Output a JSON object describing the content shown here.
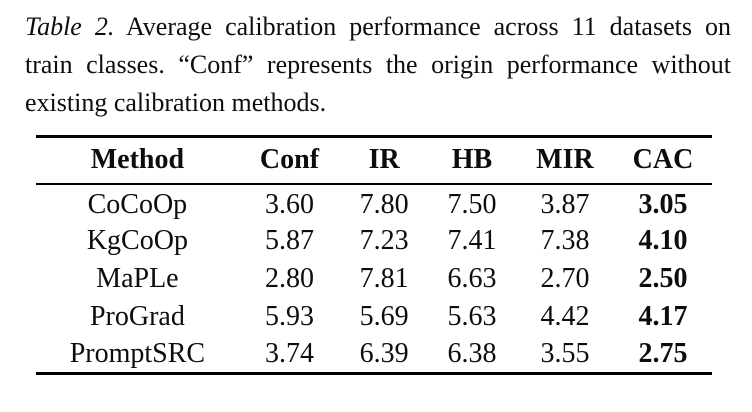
{
  "caption": {
    "label": "Table 2.",
    "text": "Average calibration performance across 11 datasets on train classes. “Conf” represents the origin performance without existing calibration methods."
  },
  "table": {
    "columns": [
      "Method",
      "Conf",
      "IR",
      "HB",
      "MIR",
      "CAC"
    ],
    "rows": [
      {
        "method": "CoCoOp",
        "values": [
          "3.60",
          "7.80",
          "7.50",
          "3.87",
          "3.05"
        ]
      },
      {
        "method": "KgCoOp",
        "values": [
          "5.87",
          "7.23",
          "7.41",
          "7.38",
          "4.10"
        ]
      },
      {
        "method": "MaPLe",
        "values": [
          "2.80",
          "7.81",
          "6.63",
          "2.70",
          "2.50"
        ]
      },
      {
        "method": "ProGrad",
        "values": [
          "5.93",
          "5.69",
          "5.63",
          "4.42",
          "4.17"
        ]
      },
      {
        "method": "PromptSRC",
        "values": [
          "3.74",
          "6.39",
          "6.38",
          "3.55",
          "2.75"
        ]
      }
    ],
    "bold_column": "CAC"
  },
  "colors": {
    "background": "#ffffff",
    "text": "#0d0d0d",
    "rule": "#000000"
  }
}
